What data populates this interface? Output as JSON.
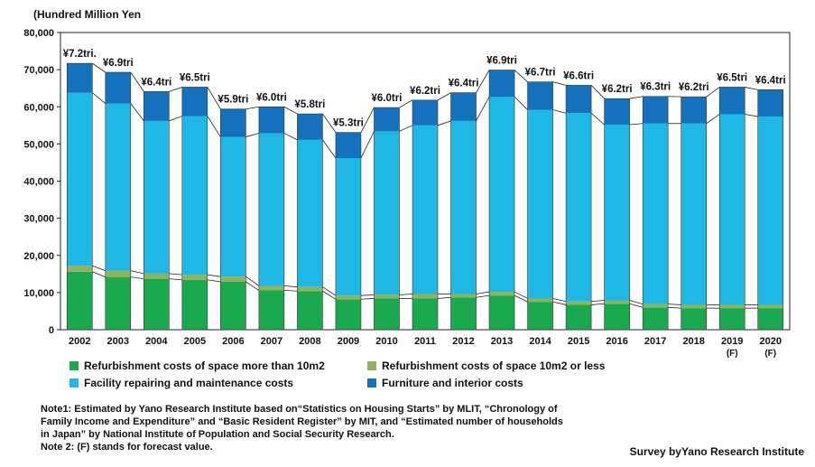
{
  "chart_data": {
    "type": "bar",
    "stacked": true,
    "unit_label": "(Hundred Million Yen",
    "categories": [
      "2002",
      "2003",
      "2004",
      "2005",
      "2006",
      "2007",
      "2008",
      "2009",
      "2010",
      "2011",
      "2012",
      "2013",
      "2014",
      "2015",
      "2016",
      "2017",
      "2018",
      "2019",
      "2020"
    ],
    "category_notes": [
      "",
      "",
      "",
      "",
      "",
      "",
      "",
      "",
      "",
      "",
      "",
      "",
      "",
      "",
      "",
      "",
      "",
      "(F)",
      "(F)"
    ],
    "totals_labels": [
      "¥7.2tri.",
      "¥6.9tri",
      "¥6.4tri",
      "¥6.5tri",
      "¥5.9tri",
      "¥6.0tri",
      "¥5.8tri",
      "¥5.3tri",
      "¥6.0tri",
      "¥6.2tri",
      "¥6.4tri",
      "¥6.9tri",
      "¥6.7tri",
      "¥6.6tri",
      "¥6.2tri",
      "¥6.3tri",
      "¥6.2tri",
      "¥6.5tri",
      "¥6.4tri"
    ],
    "series": [
      {
        "name": "Refurbishment costs of space more than 10m2",
        "color": "#1aa94e",
        "values": [
          15600,
          14200,
          13700,
          13400,
          12900,
          10600,
          10400,
          8200,
          8400,
          8400,
          8700,
          9200,
          7500,
          6700,
          7000,
          6000,
          5800,
          5800,
          5800
        ]
      },
      {
        "name": "Refurbishment costs of space 10m2 or less",
        "color": "#8fb25a",
        "values": [
          1600,
          1700,
          1400,
          1400,
          1400,
          1200,
          1100,
          1000,
          1000,
          1200,
          900,
          1000,
          900,
          900,
          900,
          900,
          900,
          900,
          900
        ]
      },
      {
        "name": "Facility repairing and maintenance costs",
        "color": "#1fb8e4",
        "values": [
          46600,
          45000,
          41100,
          42700,
          37600,
          41100,
          39600,
          37000,
          44000,
          45400,
          46600,
          52500,
          50800,
          50700,
          47300,
          48600,
          48800,
          51300,
          50700
        ]
      },
      {
        "name": "Furniture and interior costs",
        "color": "#1471bd",
        "values": [
          7900,
          8400,
          7900,
          7800,
          7500,
          7100,
          7000,
          6900,
          6400,
          6800,
          7600,
          7200,
          7500,
          7500,
          7000,
          7300,
          7200,
          7300,
          7200
        ]
      }
    ],
    "ylim": [
      0,
      80000
    ],
    "yticks": [
      0,
      10000,
      20000,
      30000,
      40000,
      50000,
      60000,
      70000,
      80000
    ],
    "ytick_labels": [
      "0",
      "10,000",
      "20,000",
      "30,000",
      "40,000",
      "50,000",
      "60,000",
      "70,000",
      "80,000"
    ]
  },
  "notes": [
    "Note1: Estimated by Yano Research Institute based on“Statistics on Housing Starts” by MLIT, “Chronology of",
    "Family Income and Expenditure” and “Basic Resident Register” by MIT, and “Estimated number of households",
    "in Japan” by National Institute of Population and Social Security Research.",
    "Note 2: (F) stands for forecast value."
  ],
  "credit": "Survey byYano Research Institute"
}
